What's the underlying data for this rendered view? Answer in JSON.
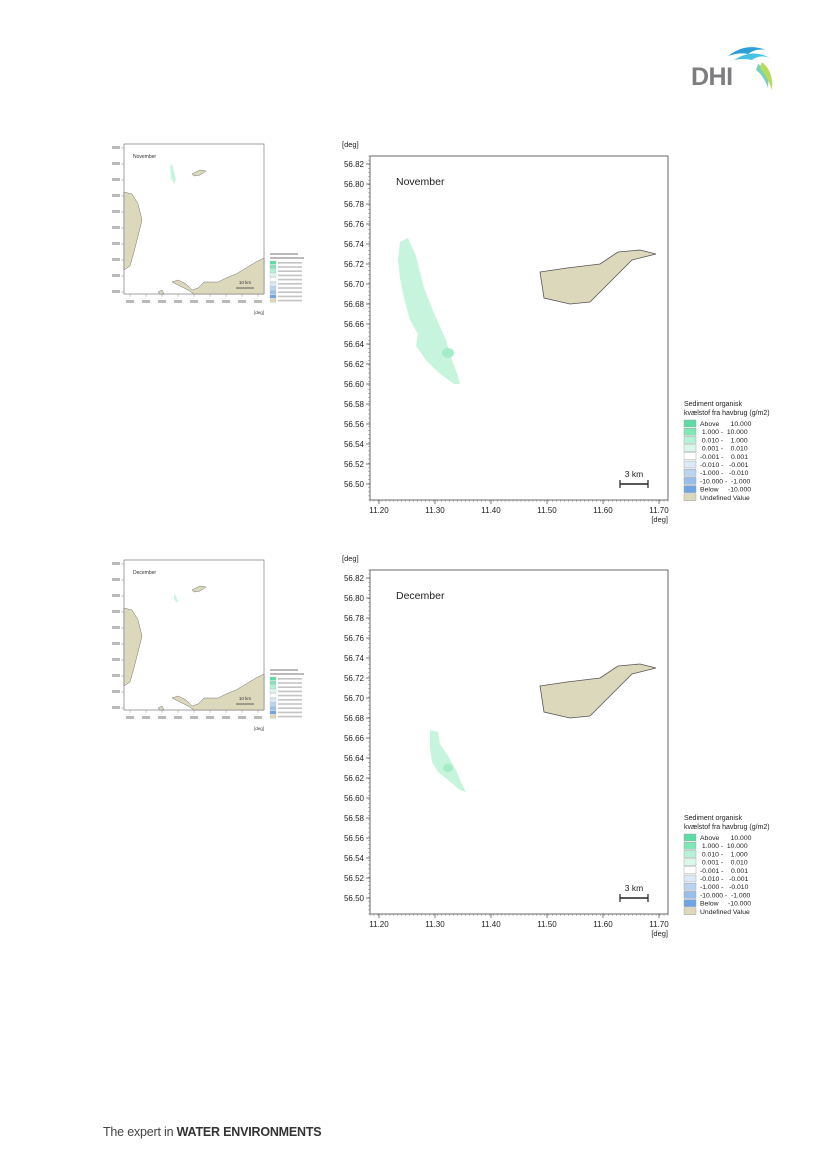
{
  "logo": {
    "text": "DHI"
  },
  "footer": {
    "prefix": "The expert in ",
    "emphasis": "WATER ENVIRONMENTS"
  },
  "legend": {
    "title_line1": "Sediment organisk",
    "title_line2": "kvælstof fra havbrug (g/m2)",
    "entries": [
      {
        "range": "Above      10.000",
        "color": "#5fdca5"
      },
      {
        "range": " 1.000 -  10.000",
        "color": "#7fe8b4"
      },
      {
        "range": " 0.010 -    1.000",
        "color": "#b3f2d6"
      },
      {
        "range": " 0.001 -    0.010",
        "color": "#d9f8ea"
      },
      {
        "range": "-0.001 -    0.001",
        "color": "#ffffff"
      },
      {
        "range": "-0.010 -   -0.001",
        "color": "#dce9f7"
      },
      {
        "range": "-1.000 -   -0.010",
        "color": "#bad4f0"
      },
      {
        "range": "-10.000 -  -1.000",
        "color": "#98bfea"
      },
      {
        "range": "Below     -10.000",
        "color": "#6fa4e2"
      },
      {
        "range": "Undefined Value",
        "color": "#dcd8bc"
      }
    ]
  },
  "colors": {
    "land": "#dcd8bc",
    "land_stroke": "#555555",
    "plume": "#c6f4dc",
    "plume_core": "#a6ecc6"
  },
  "panels": [
    {
      "month": "November",
      "y_unit": "[deg]",
      "x_unit": "[deg]",
      "y_ticks": [
        "56.82",
        "56.80",
        "56.78",
        "56.76",
        "56.74",
        "56.72",
        "56.70",
        "56.68",
        "56.66",
        "56.64",
        "56.62",
        "56.60",
        "56.58",
        "56.56",
        "56.54",
        "56.52",
        "56.50"
      ],
      "x_ticks": [
        "11.20",
        "11.30",
        "11.40",
        "11.50",
        "11.60",
        "11.70"
      ],
      "scale_label": "3 km"
    },
    {
      "month": "December",
      "y_unit": "[deg]",
      "x_unit": "[deg]",
      "y_ticks": [
        "56.82",
        "56.80",
        "56.78",
        "56.76",
        "56.74",
        "56.72",
        "56.70",
        "56.68",
        "56.66",
        "56.64",
        "56.62",
        "56.60",
        "56.58",
        "56.56",
        "56.54",
        "56.52",
        "56.50"
      ],
      "x_ticks": [
        "11.20",
        "11.30",
        "11.40",
        "11.50",
        "11.60",
        "11.70"
      ],
      "scale_label": "3 km"
    }
  ],
  "thumbnails": [
    {
      "month": "November",
      "scale_label": "10 km",
      "unit": "[deg]"
    },
    {
      "month": "December",
      "scale_label": "10 km",
      "unit": "[deg]"
    }
  ]
}
